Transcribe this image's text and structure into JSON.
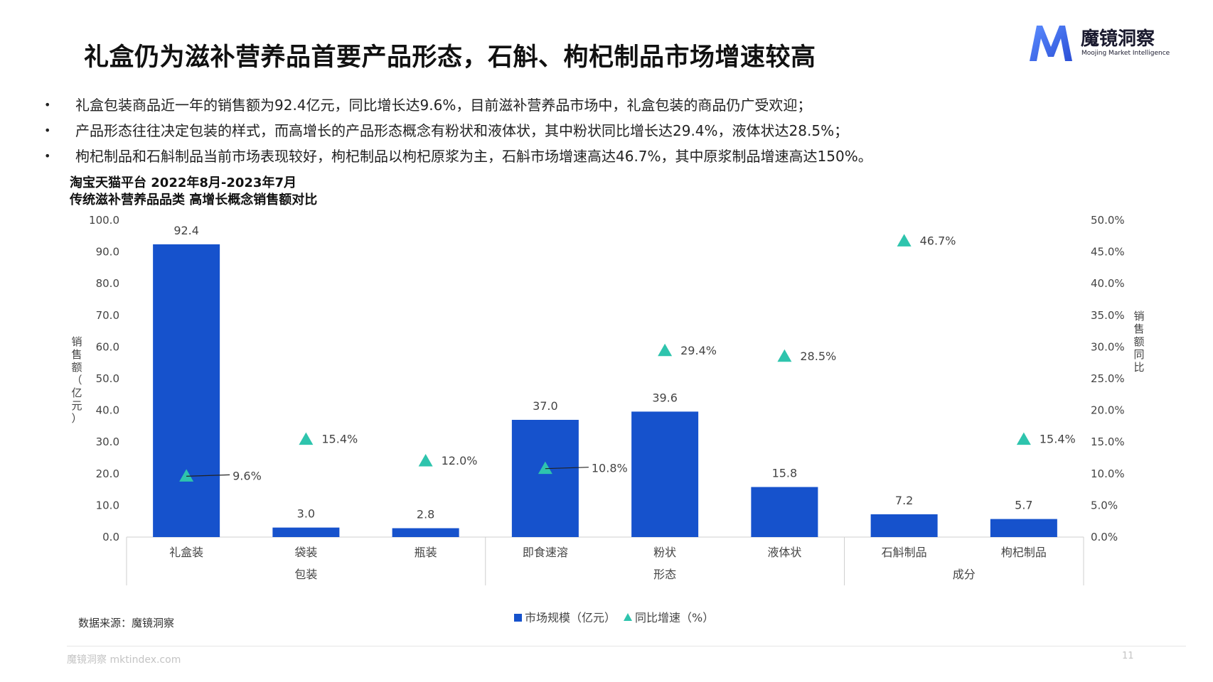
{
  "title": "礼盒仍为滋补营养品首要产品形态，石斛、枸杞制品市场增速较高",
  "logo": {
    "cn": "魔镜洞察",
    "en": "Moojing Market Intelligence"
  },
  "bullets": [
    "礼盒包装商品近一年的销售额为92.4亿元，同比增长达9.6%，目前滋补营养品市场中，礼盒包装的商品仍广受欢迎；",
    "产品形态往往决定包装的样式，而高增长的产品形态概念有粉状和液体状，其中粉状同比增长达29.4%，液体状达28.5%；",
    "枸杞制品和石斛制品当前市场表现较好，枸杞制品以枸杞原浆为主，石斛市场增速高达46.7%，其中原浆制品增速高达150%。"
  ],
  "chart_header": {
    "line1": "淘宝天猫平台 2022年8月-2023年7月",
    "line2": "传统滋补营养品品类 高增长概念销售额对比"
  },
  "chart_data": {
    "type": "bar",
    "categories": [
      "礼盒装",
      "袋装",
      "瓶装",
      "即食速溶",
      "粉状",
      "液体状",
      "石斛制品",
      "枸杞制品"
    ],
    "groups": [
      {
        "label": "包装",
        "categories": [
          "礼盒装",
          "袋装",
          "瓶装"
        ]
      },
      {
        "label": "形态",
        "categories": [
          "即食速溶",
          "粉状",
          "液体状"
        ]
      },
      {
        "label": "成分",
        "categories": [
          "石斛制品",
          "枸杞制品"
        ]
      }
    ],
    "series": [
      {
        "name": "市场规模（亿元）",
        "kind": "bar",
        "axis": "left",
        "values": [
          92.4,
          3.0,
          2.8,
          37.0,
          39.6,
          15.8,
          7.2,
          5.7
        ],
        "labels": [
          "92.4",
          "3.0",
          "2.8",
          "37.0",
          "39.6",
          "15.8",
          "7.2",
          "5.7"
        ]
      },
      {
        "name": "同比增速（%）",
        "kind": "triangle-marker",
        "axis": "right",
        "values": [
          9.6,
          15.4,
          12.0,
          10.8,
          29.4,
          28.5,
          46.7,
          15.4
        ],
        "labels": [
          "9.6%",
          "15.4%",
          "12.0%",
          "10.8%",
          "29.4%",
          "28.5%",
          "46.7%",
          "15.4%"
        ]
      }
    ],
    "ylabel": "销售额（亿元）",
    "y2label": "销售额同比",
    "ylim": [
      0,
      100
    ],
    "y2lim": [
      0,
      50
    ],
    "yticks": [
      "0.0",
      "10.0",
      "20.0",
      "30.0",
      "40.0",
      "50.0",
      "60.0",
      "70.0",
      "80.0",
      "90.0",
      "100.0"
    ],
    "y2ticks": [
      "0.0%",
      "5.0%",
      "10.0%",
      "15.0%",
      "20.0%",
      "25.0%",
      "30.0%",
      "35.0%",
      "40.0%",
      "45.0%",
      "50.0%"
    ],
    "legend": {
      "position": "bottom",
      "items": [
        "市场规模（亿元）",
        "同比增速（%）"
      ]
    },
    "grid": false,
    "colors": {
      "bar": "#1652cc",
      "marker": "#2ec4ad"
    }
  },
  "source": "数据来源：魔镜洞察",
  "footer": "魔镜洞察 mktindex.com",
  "page_number": "11"
}
